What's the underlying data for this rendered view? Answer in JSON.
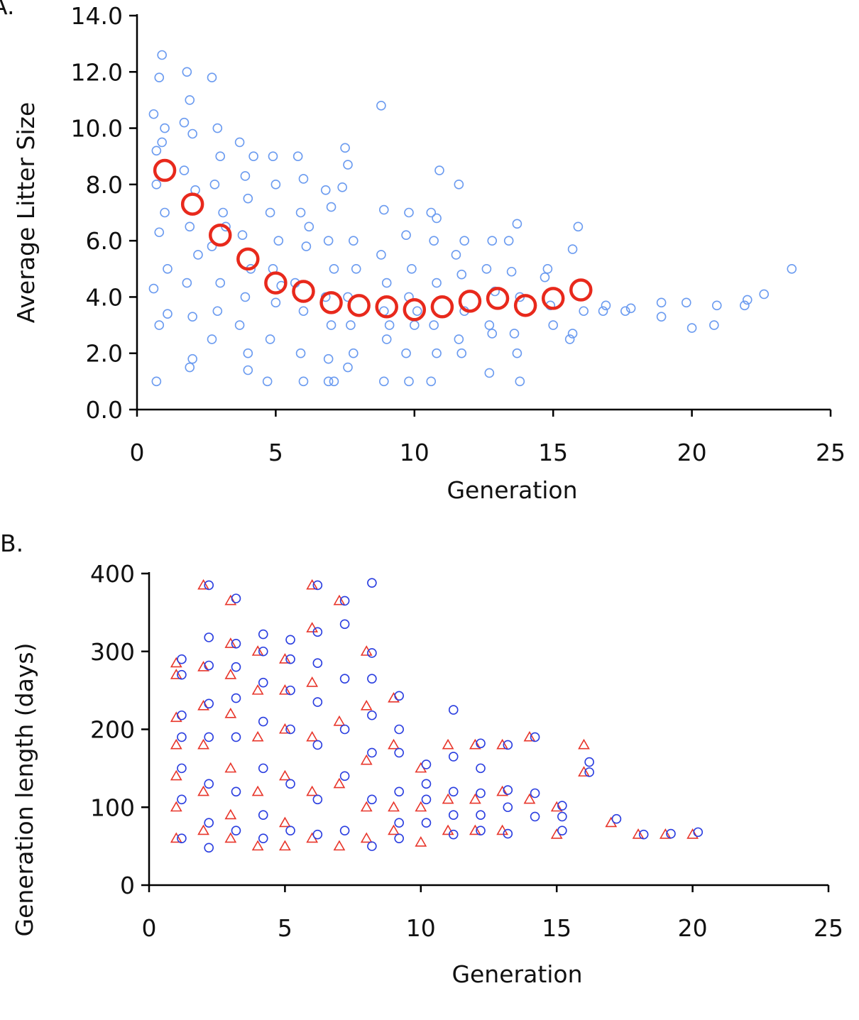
{
  "chart_data": [
    {
      "type": "scatter",
      "panel_label": "A.",
      "xlabel": "Generation",
      "ylabel": "Average Litter Size",
      "xlim": [
        0,
        25
      ],
      "xticks": [
        0,
        5,
        10,
        15,
        20,
        25
      ],
      "ylim": [
        0,
        14
      ],
      "yticks": [
        {
          "value": 0,
          "label": "0.0"
        },
        {
          "value": 2,
          "label": "2.0"
        },
        {
          "value": 4,
          "label": "4.0"
        },
        {
          "value": 6,
          "label": "6.0"
        },
        {
          "value": 8,
          "label": "8.0"
        },
        {
          "value": 10,
          "label": "10.0"
        },
        {
          "value": 12,
          "label": "12.0"
        },
        {
          "value": 14,
          "label": "14.0"
        }
      ],
      "grid": false,
      "series": [
        {
          "color": "#6b9bf0",
          "marker": "circle",
          "x": [
            0.6,
            0.7,
            0.8,
            0.9,
            0.7,
            1.0,
            0.8,
            1.1,
            0.6,
            0.8,
            0.7,
            1.0,
            1.1,
            0.9,
            1.8,
            1.9,
            2.0,
            1.7,
            2.1,
            1.9,
            2.2,
            1.8,
            2.0,
            1.9,
            2.0,
            1.7,
            2.7,
            2.9,
            3.0,
            2.8,
            3.1,
            2.7,
            3.0,
            2.9,
            2.7,
            3.2,
            3.7,
            3.9,
            4.0,
            3.8,
            4.1,
            3.9,
            3.7,
            4.0,
            4.0,
            4.2,
            4.9,
            5.0,
            4.8,
            5.1,
            4.9,
            5.0,
            4.8,
            4.7,
            5.2,
            5.8,
            6.0,
            5.9,
            6.1,
            5.7,
            6.0,
            5.9,
            6.0,
            6.2,
            6.8,
            7.0,
            6.9,
            7.1,
            6.8,
            7.0,
            6.9,
            6.9,
            7.1,
            7.5,
            7.6,
            7.4,
            7.8,
            7.9,
            7.6,
            7.7,
            7.8,
            7.6,
            8.8,
            8.9,
            8.8,
            9.0,
            8.9,
            9.0,
            8.9,
            9.1,
            9.8,
            9.7,
            9.9,
            9.8,
            10.0,
            9.7,
            9.8,
            10.1,
            10.6,
            10.8,
            10.7,
            10.9,
            10.8,
            10.7,
            10.8,
            10.6,
            11.6,
            11.8,
            11.5,
            11.7,
            11.8,
            11.6,
            11.7,
            12.8,
            12.6,
            12.9,
            12.7,
            12.8,
            12.7,
            13.7,
            13.5,
            13.8,
            13.6,
            13.7,
            13.8,
            13.4,
            14.8,
            14.7,
            14.9,
            15.0,
            15.7,
            15.9,
            15.6,
            15.7,
            16.1,
            16.9,
            16.8,
            17.6,
            17.8,
            18.9,
            18.9,
            19.8,
            20.0,
            20.9,
            20.8,
            21.9,
            22.0,
            22.6,
            23.6
          ],
          "values": [
            10.5,
            9.2,
            11.8,
            12.6,
            8.0,
            7.0,
            6.3,
            5.0,
            4.3,
            3.0,
            1.0,
            10.0,
            3.4,
            9.5,
            12.0,
            11.0,
            9.8,
            8.5,
            7.8,
            6.5,
            5.5,
            4.5,
            3.3,
            1.5,
            1.8,
            10.2,
            11.8,
            10.0,
            9.0,
            8.0,
            7.0,
            5.8,
            4.5,
            3.5,
            2.5,
            6.5,
            9.5,
            8.3,
            7.5,
            6.2,
            5.0,
            4.0,
            3.0,
            2.0,
            1.4,
            9.0,
            9.0,
            8.0,
            7.0,
            6.0,
            5.0,
            3.8,
            2.5,
            1.0,
            4.4,
            9.0,
            8.2,
            7.0,
            5.8,
            4.5,
            3.5,
            2.0,
            1.0,
            6.5,
            7.8,
            7.2,
            6.0,
            5.0,
            4.0,
            3.0,
            1.8,
            1.0,
            1.0,
            9.3,
            8.7,
            7.9,
            6.0,
            5.0,
            4.0,
            3.0,
            2.0,
            1.5,
            10.8,
            7.1,
            5.5,
            4.5,
            3.5,
            2.5,
            1.0,
            3.0,
            7.0,
            6.2,
            5.0,
            4.0,
            3.0,
            2.0,
            1.0,
            3.5,
            7.0,
            6.8,
            6.0,
            8.5,
            4.5,
            3.0,
            2.0,
            1.0,
            8.0,
            6.0,
            5.5,
            4.8,
            3.5,
            2.5,
            2.0,
            6.0,
            5.0,
            4.2,
            3.0,
            2.7,
            1.3,
            6.6,
            4.9,
            4.0,
            2.7,
            2.0,
            1.0,
            6.0,
            5.0,
            4.7,
            3.7,
            3.0,
            5.7,
            6.5,
            2.5,
            2.7,
            3.5,
            3.7,
            3.5,
            3.5,
            3.6,
            3.8,
            3.3,
            3.8,
            2.9,
            3.7,
            3.0,
            3.7,
            3.9,
            4.1,
            5.0
          ]
        },
        {
          "color": "#e8291c",
          "marker": "large-circle",
          "x": [
            1,
            2,
            3,
            4,
            5,
            6,
            7,
            8,
            9,
            10,
            11,
            12,
            13,
            14,
            15,
            16
          ],
          "values": [
            8.5,
            7.3,
            6.2,
            5.35,
            4.5,
            4.2,
            3.8,
            3.7,
            3.65,
            3.55,
            3.65,
            3.85,
            3.95,
            3.7,
            3.95,
            4.25
          ]
        }
      ]
    },
    {
      "type": "scatter",
      "panel_label": "B.",
      "xlabel": "Generation",
      "ylabel": "Generation length (days)",
      "xlim": [
        0,
        25
      ],
      "xticks": [
        0,
        5,
        10,
        15,
        20,
        25
      ],
      "ylim": [
        0,
        400
      ],
      "yticks": [
        0,
        100,
        200,
        300,
        400
      ],
      "grid": false,
      "series": [
        {
          "color": "#e8352a",
          "marker": "triangle",
          "x": [
            1,
            1,
            1,
            1,
            1,
            1,
            1,
            2,
            2,
            2,
            2,
            2,
            2,
            3,
            3,
            3,
            3,
            3,
            3,
            3,
            4,
            4,
            4,
            4,
            4,
            5,
            5,
            5,
            5,
            5,
            5,
            6,
            6,
            6,
            6,
            6,
            6,
            7,
            7,
            7,
            7,
            8,
            8,
            8,
            8,
            8,
            9,
            9,
            9,
            9,
            10,
            10,
            10,
            11,
            11,
            11,
            12,
            12,
            12,
            13,
            13,
            13,
            14,
            14,
            15,
            15,
            16,
            16,
            17,
            18,
            19,
            20
          ],
          "values": [
            285,
            270,
            215,
            180,
            140,
            100,
            60,
            385,
            280,
            230,
            180,
            120,
            70,
            365,
            310,
            270,
            220,
            150,
            90,
            60,
            300,
            250,
            190,
            120,
            50,
            290,
            250,
            200,
            140,
            80,
            50,
            385,
            330,
            260,
            190,
            120,
            60,
            365,
            210,
            130,
            50,
            300,
            230,
            160,
            100,
            60,
            240,
            180,
            100,
            70,
            150,
            100,
            55,
            180,
            110,
            70,
            180,
            110,
            70,
            180,
            120,
            70,
            190,
            110,
            100,
            65,
            180,
            145,
            80,
            65,
            65,
            65
          ]
        },
        {
          "color": "#2a3ee0",
          "marker": "circle",
          "x": [
            1.2,
            1.2,
            1.2,
            1.2,
            1.2,
            1.2,
            1.2,
            2.2,
            2.2,
            2.2,
            2.2,
            2.2,
            2.2,
            2.2,
            2.2,
            3.2,
            3.2,
            3.2,
            3.2,
            3.2,
            3.2,
            3.2,
            4.2,
            4.2,
            4.2,
            4.2,
            4.2,
            4.2,
            4.2,
            5.2,
            5.2,
            5.2,
            5.2,
            5.2,
            5.2,
            6.2,
            6.2,
            6.2,
            6.2,
            6.2,
            6.2,
            6.2,
            7.2,
            7.2,
            7.2,
            7.2,
            7.2,
            7.2,
            8.2,
            8.2,
            8.2,
            8.2,
            8.2,
            8.2,
            8.2,
            9.2,
            9.2,
            9.2,
            9.2,
            9.2,
            9.2,
            10.2,
            10.2,
            10.2,
            10.2,
            11.2,
            11.2,
            11.2,
            11.2,
            11.2,
            12.2,
            12.2,
            12.2,
            12.2,
            12.2,
            13.2,
            13.2,
            13.2,
            13.2,
            14.2,
            14.2,
            14.2,
            15.2,
            15.2,
            15.2,
            16.2,
            16.2,
            17.2,
            18.2,
            19.2,
            20.2
          ],
          "values": [
            290,
            270,
            218,
            190,
            150,
            110,
            60,
            385,
            318,
            282,
            233,
            190,
            130,
            80,
            48,
            368,
            310,
            280,
            240,
            190,
            120,
            70,
            322,
            300,
            260,
            210,
            150,
            90,
            60,
            315,
            290,
            250,
            200,
            130,
            70,
            385,
            325,
            285,
            235,
            180,
            110,
            65,
            365,
            335,
            265,
            200,
            140,
            70,
            388,
            298,
            265,
            218,
            170,
            110,
            50,
            243,
            200,
            170,
            120,
            80,
            60,
            155,
            130,
            110,
            80,
            225,
            165,
            120,
            90,
            65,
            182,
            150,
            118,
            90,
            70,
            180,
            122,
            100,
            66,
            190,
            118,
            88,
            102,
            88,
            70,
            158,
            145,
            85,
            65,
            66,
            68
          ]
        }
      ]
    }
  ]
}
